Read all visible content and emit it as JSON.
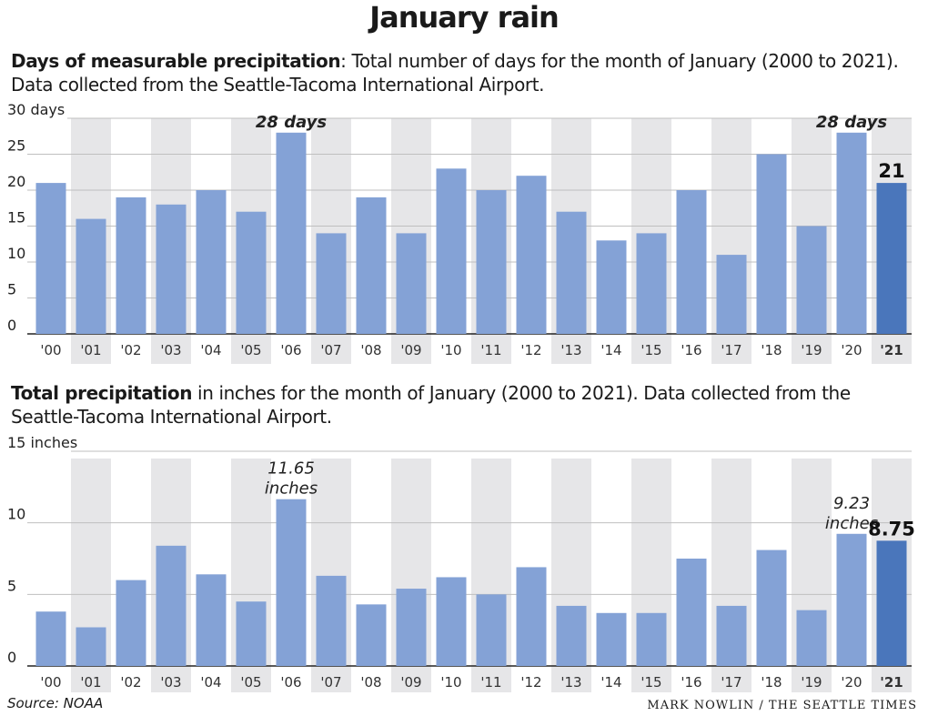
{
  "title": "January rain",
  "chart1_desc": {
    "bold": "Days of measurable precipitation",
    "rest": ": Total number of days for the month of January (2000 to 2021). Data collected from the Seattle-Tacoma International Airport."
  },
  "chart2_desc": {
    "bold": "Total precipitation",
    "rest": " in inches for the month of January (2000 to 2021). Data collected from the Seattle-Tacoma International Airport."
  },
  "footer": {
    "source": "Source: NOAA",
    "credit": "MARK NOWLIN / THE SEATTLE TIMES"
  },
  "colors": {
    "bar": "#84a2d6",
    "highlight": "#4a76bb",
    "band": "#e6e6e8",
    "grid": "#bfbfbf"
  },
  "chart_data": [
    {
      "type": "bar",
      "title": "Days of measurable precipitation",
      "categories": [
        "'00",
        "'01",
        "'02",
        "'03",
        "'04",
        "'05",
        "'06",
        "'07",
        "'08",
        "'09",
        "'10",
        "'11",
        "'12",
        "'13",
        "'14",
        "'15",
        "'16",
        "'17",
        "'18",
        "'19",
        "'20",
        "'21"
      ],
      "values": [
        21,
        16,
        19,
        18,
        20,
        17,
        28,
        14,
        19,
        14,
        23,
        20,
        22,
        17,
        13,
        14,
        20,
        11,
        25,
        15,
        28,
        21
      ],
      "ylim": [
        0,
        30
      ],
      "yticks": [
        "0",
        "5",
        "10",
        "15",
        "20",
        "25",
        "30 days"
      ],
      "ytick_values": [
        0,
        5,
        10,
        15,
        20,
        25,
        30
      ],
      "highlight_index": 21,
      "annotations": [
        {
          "index": 6,
          "lines": [
            "28 days"
          ]
        },
        {
          "index": 20,
          "lines": [
            "28 days"
          ]
        }
      ],
      "value_label": {
        "index": 21,
        "text": "21"
      },
      "grid": true,
      "alternating_bands": true
    },
    {
      "type": "bar",
      "title": "Total precipitation",
      "categories": [
        "'00",
        "'01",
        "'02",
        "'03",
        "'04",
        "'05",
        "'06",
        "'07",
        "'08",
        "'09",
        "'10",
        "'11",
        "'12",
        "'13",
        "'14",
        "'15",
        "'16",
        "'17",
        "'18",
        "'19",
        "'20",
        "'21"
      ],
      "values": [
        3.8,
        2.7,
        6.0,
        8.4,
        6.4,
        4.5,
        11.65,
        6.3,
        4.3,
        5.4,
        6.2,
        5.0,
        6.9,
        4.2,
        3.7,
        3.7,
        7.5,
        4.2,
        8.1,
        3.9,
        9.23,
        8.75
      ],
      "ylim": [
        0,
        15
      ],
      "yticks": [
        "0",
        "5",
        "10",
        "15 inches"
      ],
      "ytick_values": [
        0,
        5,
        10,
        15
      ],
      "highlight_index": 21,
      "annotations": [
        {
          "index": 6,
          "lines": [
            "11.65",
            "inches"
          ]
        },
        {
          "index": 20,
          "lines": [
            "9.23",
            "inches"
          ]
        }
      ],
      "value_label": {
        "index": 21,
        "text": "8.75"
      },
      "grid": true,
      "alternating_bands": true
    }
  ]
}
